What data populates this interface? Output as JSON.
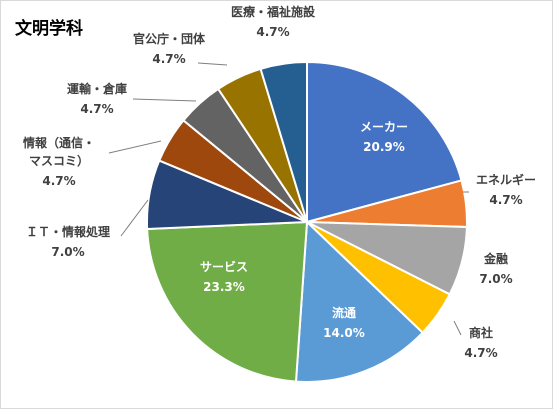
{
  "chart_data": {
    "type": "pie",
    "title": "文明学科",
    "start_angle_deg": 0,
    "direction": "clockwise",
    "slices": [
      {
        "name": "メーカー",
        "value_label": "20.9%",
        "value": 20.9,
        "color": "#4472c4",
        "label_inside": true
      },
      {
        "name": "エネルギー",
        "value_label": "4.7%",
        "value": 4.7,
        "color": "#ed7d31",
        "label_inside": false
      },
      {
        "name": "金融",
        "value_label": "7.0%",
        "value": 7.0,
        "color": "#a5a5a5",
        "label_inside": false
      },
      {
        "name": "商社",
        "value_label": "4.7%",
        "value": 4.7,
        "color": "#ffc000",
        "label_inside": false
      },
      {
        "name": "流通",
        "value_label": "14.0%",
        "value": 14.0,
        "color": "#5b9bd5",
        "label_inside": true
      },
      {
        "name": "サービス",
        "value_label": "23.3%",
        "value": 23.3,
        "color": "#70ad47",
        "label_inside": true
      },
      {
        "name": "ＩＴ・情報処理",
        "value_label": "7.0%",
        "value": 7.0,
        "color": "#264478",
        "label_inside": false
      },
      {
        "name": "情報（通信・マスコミ）",
        "name_lines": [
          "情報（通信・",
          "マスコミ）"
        ],
        "value_label": "4.7%",
        "value": 4.7,
        "color": "#9e480e",
        "label_inside": false
      },
      {
        "name": "運輸・倉庫",
        "value_label": "4.7%",
        "value": 4.7,
        "color": "#636363",
        "label_inside": false
      },
      {
        "name": "官公庁・団体",
        "value_label": "4.7%",
        "value": 4.7,
        "color": "#997300",
        "label_inside": false
      },
      {
        "name": "医療・福祉施設",
        "value_label": "4.7%",
        "value": 4.7,
        "color": "#255e91",
        "label_inside": false
      }
    ]
  }
}
